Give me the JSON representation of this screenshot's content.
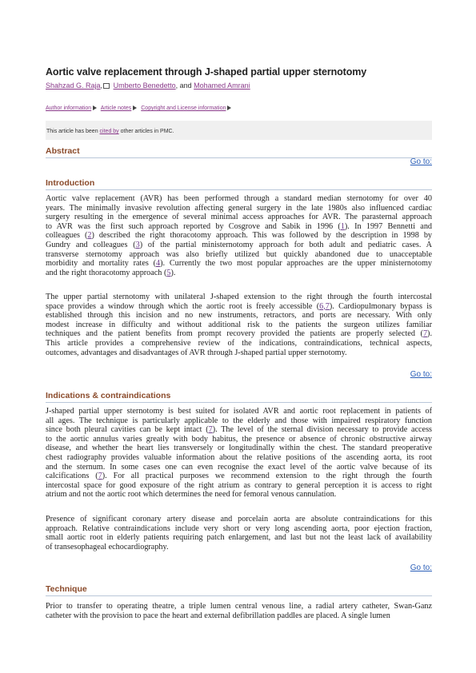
{
  "article": {
    "title": "Aortic valve replacement through J-shaped partial upper sternotomy",
    "authors": [
      {
        "name": "Shahzad G. Raja"
      },
      {
        "name": "Umberto Benedetto"
      },
      {
        "name": "Mohamed Amrani"
      }
    ],
    "author_sep1": ",",
    "author_sep2": ", ",
    "author_and": ", and "
  },
  "metalinks": [
    {
      "label": "Author information"
    },
    {
      "label": "Article notes"
    },
    {
      "label": "Copyright and License information"
    }
  ],
  "cited": {
    "prefix": "This article has been ",
    "link": "cited by",
    "suffix": " other articles in PMC."
  },
  "goto_label": "Go to:",
  "sections": {
    "abstract": {
      "heading": "Abstract"
    },
    "introduction": {
      "heading": "Introduction",
      "p1": [
        [
          "Aortic valve replacement (AVR) has been performed through a standard median sternotomy for over 40"
        ],
        [
          "years. The minimally invasive revolution affecting general surgery in the late 1980s also influenced cardiac"
        ],
        [
          "surgery resulting in the emergence of several minimal access approaches for AVR. The parasternal approach"
        ],
        [
          "to AVR was the first such approach reported by Cosgrove and Sabik in 1996 (",
          "1",
          "). In 1997 Bennetti and"
        ],
        [
          "colleagues (",
          "2",
          ") described the right thoracotomy approach. This was followed by the description in 1998 by"
        ],
        [
          "Gundry and colleagues (",
          "3",
          ") of the partial ministernotomy approach for both adult and pediatric cases. A"
        ],
        [
          "transverse sternotomy approach was also briefly utilized but quickly abandoned due to unacceptable"
        ],
        [
          "morbidity and mortality rates (",
          "4",
          "). Currently the two most popular approaches are the upper ministernotomy"
        ],
        [
          "and the right thoracotomy approach (",
          "5",
          ")."
        ]
      ],
      "p2": [
        [
          "The upper partial sternotomy with unilateral J-shaped extension to the right through the fourth intercostal"
        ],
        [
          "space provides a window through which the aortic root is freely accessible (",
          "6,7",
          "). Cardiopulmonary bypass is"
        ],
        [
          "established through this incision and no new instruments, retractors, and ports are necessary. With only"
        ],
        [
          "modest increase in difficulty and without additional risk to the patients the surgeon utilizes familiar"
        ],
        [
          "techniques and the patient benefits from prompt recovery provided the patients are properly selected (",
          "7",
          ")."
        ],
        [
          "This article provides a comprehensive review of the indications, contraindications, technical aspects,"
        ],
        [
          "outcomes, advantages and disadvantages of AVR through J-shaped partial upper sternotomy."
        ]
      ]
    },
    "indications": {
      "heading": "Indications & contraindications",
      "p1": [
        [
          "J-shaped partial upper sternotomy is best suited for isolated AVR and aortic root replacement in patients of"
        ],
        [
          "all ages. The technique is particularly applicable to the elderly and those with impaired respiratory function"
        ],
        [
          "since both pleural cavities can be kept intact (",
          "7",
          "). The level of the sternal division necessary to provide access"
        ],
        [
          "to the aortic annulus varies greatly with body habitus, the presence or absence of chronic obstructive airway"
        ],
        [
          "disease, and whether the heart lies transversely or longitudinally within the chest. The standard preoperative"
        ],
        [
          "chest radiography provides valuable information about the relative positions of the ascending aorta, its root"
        ],
        [
          "and the sternum. In some cases one can even recognise the exact level of the aortic valve because of its"
        ],
        [
          "calcifications (",
          "7",
          "). For all practical purposes we recommend extension to the right through the fourth"
        ],
        [
          "intercostal space for good exposure of the right atrium as contrary to general perception it is access to right"
        ],
        [
          "atrium and not the aortic root which determines the need for femoral venous cannulation."
        ]
      ],
      "p2": [
        [
          "Presence of significant coronary artery disease and porcelain aorta are absolute contraindications for this"
        ],
        [
          "approach. Relative contraindications include very short or very long ascending aorta, poor ejection fraction,"
        ],
        [
          "small aortic root in elderly patients requiring patch enlargement, and last but not the least lack of availability"
        ],
        [
          "of transesophageal echocardiography."
        ]
      ]
    },
    "technique": {
      "heading": "Technique",
      "p1": [
        [
          "Prior to transfer to operating theatre, a triple lumen central venous line, a radial artery catheter, Swan-Ganz"
        ],
        [
          "catheter with the provision to pace the heart and external defibrillation paddles are placed. A single lumen"
        ]
      ]
    }
  }
}
